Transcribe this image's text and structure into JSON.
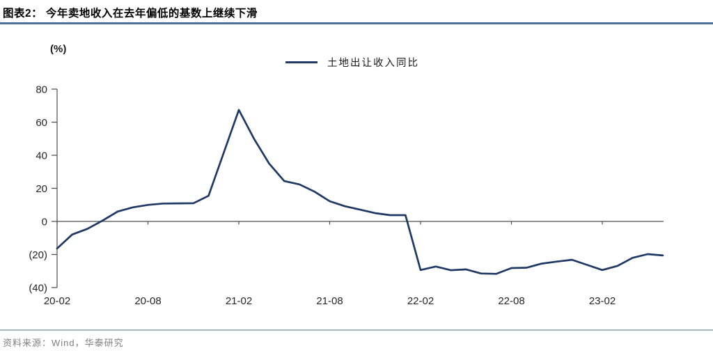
{
  "header": {
    "title": "图表2：  今年卖地收入在去年偏低的基数上继续下滑"
  },
  "footer": {
    "source": "资料来源：Wind，华泰研究"
  },
  "colors": {
    "accent_line": "#1f3864",
    "title_rule": "#4c6f9e",
    "footer_rule": "#a9b7c1",
    "axis": "#4d4d4d",
    "source_text": "#808080"
  },
  "chart_data": {
    "type": "line",
    "figure_label": "图表2",
    "title": "今年卖地收入在去年偏低的基数上继续下滑",
    "unit_label": "(%)",
    "legend": [
      "土地出让收入同比"
    ],
    "legend_position": "top-center",
    "grid": false,
    "ylim": [
      -40,
      80
    ],
    "ytick_interval": 20,
    "ytick_labels": [
      "80",
      "60",
      "40",
      "20",
      "0",
      "(20)",
      "(40)"
    ],
    "xtick_indices": [
      0,
      6,
      12,
      18,
      24,
      30,
      36
    ],
    "xtick_labels": [
      "20-02",
      "20-08",
      "21-02",
      "21-08",
      "22-02",
      "22-08",
      "23-02"
    ],
    "x": [
      "20-02",
      "20-03",
      "20-04",
      "20-05",
      "20-06",
      "20-07",
      "20-08",
      "20-09",
      "20-10",
      "20-11",
      "20-12",
      "21-01",
      "21-02",
      "21-03",
      "21-04",
      "21-05",
      "21-06",
      "21-07",
      "21-08",
      "21-09",
      "21-10",
      "21-11",
      "21-12",
      "22-01",
      "22-02",
      "22-03",
      "22-04",
      "22-05",
      "22-06",
      "22-07",
      "22-08",
      "22-09",
      "22-10",
      "22-11",
      "22-12",
      "23-01",
      "23-02",
      "23-03",
      "23-04",
      "23-05",
      "23-06"
    ],
    "series": [
      {
        "name": "土地出让收入同比",
        "values": [
          -16.4,
          -7.9,
          -4.5,
          0.5,
          6.0,
          8.5,
          10.0,
          10.8,
          10.9,
          11.0,
          15.5,
          41.5,
          67.4,
          50.0,
          35.0,
          24.4,
          22.4,
          18.0,
          12.2,
          9.2,
          7.1,
          5.0,
          3.8,
          3.8,
          -29.4,
          -27.3,
          -29.5,
          -29.0,
          -31.5,
          -31.7,
          -28.2,
          -28.0,
          -25.5,
          -24.3,
          -23.2,
          -26.3,
          -29.4,
          -26.9,
          -22.0,
          -19.8,
          -20.6
        ]
      }
    ],
    "line_color": "#1f3864",
    "axis_color": "#4d4d4d"
  }
}
